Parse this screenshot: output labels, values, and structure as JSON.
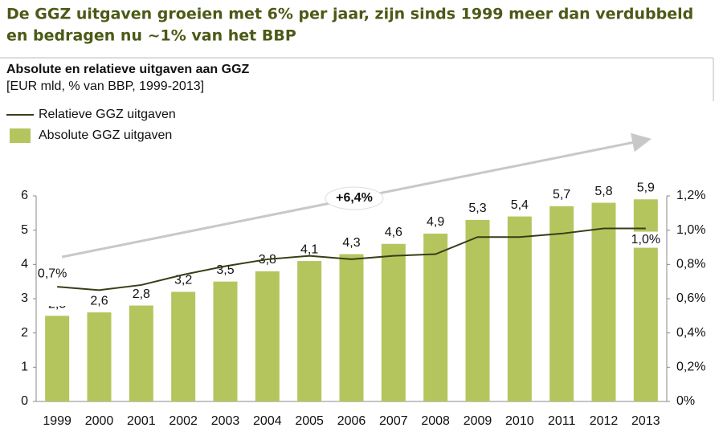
{
  "chart_data": {
    "type": "bar-line",
    "title": [
      "De GGZ uitgaven groeien met 6% per jaar, zijn sinds 1999 meer dan verdubbeld",
      "en bedragen nu ~1% van het BBP"
    ],
    "chart_title": "Absolute en relatieve uitgaven aan GGZ",
    "subtitle": "[EUR mld, % van BBP, 1999-2013]",
    "annotation": "+6,4%",
    "categories": [
      "1999",
      "2000",
      "2001",
      "2002",
      "2003",
      "2004",
      "2005",
      "2006",
      "2007",
      "2008",
      "2009",
      "2010",
      "2011",
      "2012",
      "2013"
    ],
    "series": [
      {
        "name": "Relatieve GGZ uitgaven",
        "type": "line",
        "axis": "y2",
        "color": "#3b3b16",
        "values": [
          0.67,
          0.65,
          0.68,
          0.74,
          0.79,
          0.83,
          0.85,
          0.83,
          0.85,
          0.86,
          0.96,
          0.96,
          0.98,
          1.01,
          1.01
        ],
        "value_labels": [
          "0,7%",
          null,
          null,
          null,
          null,
          null,
          null,
          null,
          null,
          null,
          null,
          null,
          null,
          null,
          "1,0%"
        ]
      },
      {
        "name": "Absolute GGZ uitgaven",
        "type": "bar",
        "color": "#b5c55e",
        "values": [
          2.5,
          2.6,
          2.8,
          3.2,
          3.5,
          3.8,
          4.1,
          4.3,
          4.6,
          4.9,
          5.3,
          5.4,
          5.7,
          5.8,
          5.9
        ],
        "value_labels": [
          "2,5",
          "2,6",
          "2,8",
          "3,2",
          "3,5",
          "3,8",
          "4,1",
          "4,3",
          "4,6",
          "4,9",
          "5,3",
          "5,4",
          "5,7",
          "5,8",
          "5,9"
        ]
      }
    ],
    "ylim": [
      0,
      6
    ],
    "yticks": [
      0,
      1,
      2,
      3,
      4,
      5,
      6
    ],
    "y2lim": [
      0,
      1.2
    ],
    "y2ticks": [
      {
        "value": 0,
        "label": "0%"
      },
      {
        "value": 0.2,
        "label": "0,2%"
      },
      {
        "value": 0.4,
        "label": "0,4%"
      },
      {
        "value": 0.6,
        "label": "0,6%"
      },
      {
        "value": 0.8,
        "label": "0,8%"
      },
      {
        "value": 1.0,
        "label": "1,0%"
      },
      {
        "value": 1.2,
        "label": "1,2%"
      }
    ],
    "legend": "top-left",
    "grid": false
  }
}
